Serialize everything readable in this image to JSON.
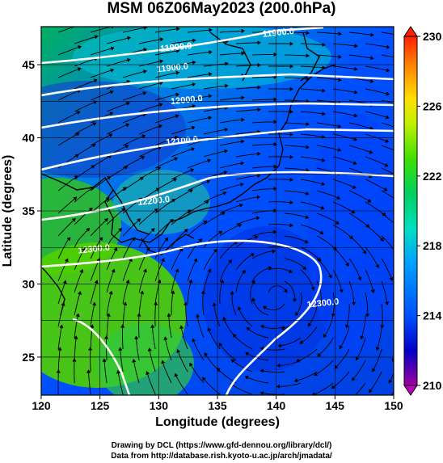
{
  "title": "MSM 06Z06May2023 (200.0hPa)",
  "x_axis": {
    "label": "Longitude (degrees)",
    "ticks": [
      {
        "label": "120",
        "value": 120
      },
      {
        "label": "125",
        "value": 125
      },
      {
        "label": "130",
        "value": 130
      },
      {
        "label": "135",
        "value": 135
      },
      {
        "label": "140",
        "value": 140
      },
      {
        "label": "145",
        "value": 145
      },
      {
        "label": "150",
        "value": 150
      }
    ],
    "range": [
      120,
      150
    ]
  },
  "y_axis": {
    "label": "Latitude  (degrees)",
    "ticks": [
      {
        "label": "25",
        "value": 25
      },
      {
        "label": "30",
        "value": 30
      },
      {
        "label": "35",
        "value": 35
      },
      {
        "label": "40",
        "value": 40
      },
      {
        "label": "45",
        "value": 45
      }
    ],
    "range": [
      22.4,
      47.6
    ]
  },
  "colorbar": {
    "ticks": [
      {
        "label": "230",
        "value": 230
      },
      {
        "label": "226",
        "value": 226
      },
      {
        "label": "222",
        "value": 222
      },
      {
        "label": "218",
        "value": 218
      },
      {
        "label": "214",
        "value": 214
      },
      {
        "label": "210",
        "value": 210
      }
    ],
    "range": [
      210,
      230
    ],
    "colors": [
      "#a000a0",
      "#0000c8",
      "#0050ff",
      "#00a0ff",
      "#00e0c0",
      "#00d060",
      "#40e000",
      "#c0f000",
      "#ffe000",
      "#ff8000",
      "#ff2000"
    ]
  },
  "contour_labels": [
    {
      "label": "11900.0",
      "lon": 140.2,
      "lat": 47.0
    },
    {
      "label": "11900.0",
      "lon": 131.5,
      "lat": 46.0
    },
    {
      "label": "11900.0",
      "lon": 131.2,
      "lat": 44.6
    },
    {
      "label": "12000.0",
      "lon": 132.4,
      "lat": 42.4
    },
    {
      "label": "12100.0",
      "lon": 132.0,
      "lat": 39.6
    },
    {
      "label": "12200.0",
      "lon": 129.6,
      "lat": 35.5
    },
    {
      "label": "12300.0",
      "lon": 124.5,
      "lat": 32.2
    },
    {
      "label": "12300.0",
      "lon": 144.0,
      "lat": 28.5
    }
  ],
  "credits": {
    "line1": "Drawing by DCL (https://www.gfd-dennou.org/library/dcl/)",
    "line2": "Data from http://database.rish.kyoto-u.ac.jp/arch/jmadata/"
  }
}
